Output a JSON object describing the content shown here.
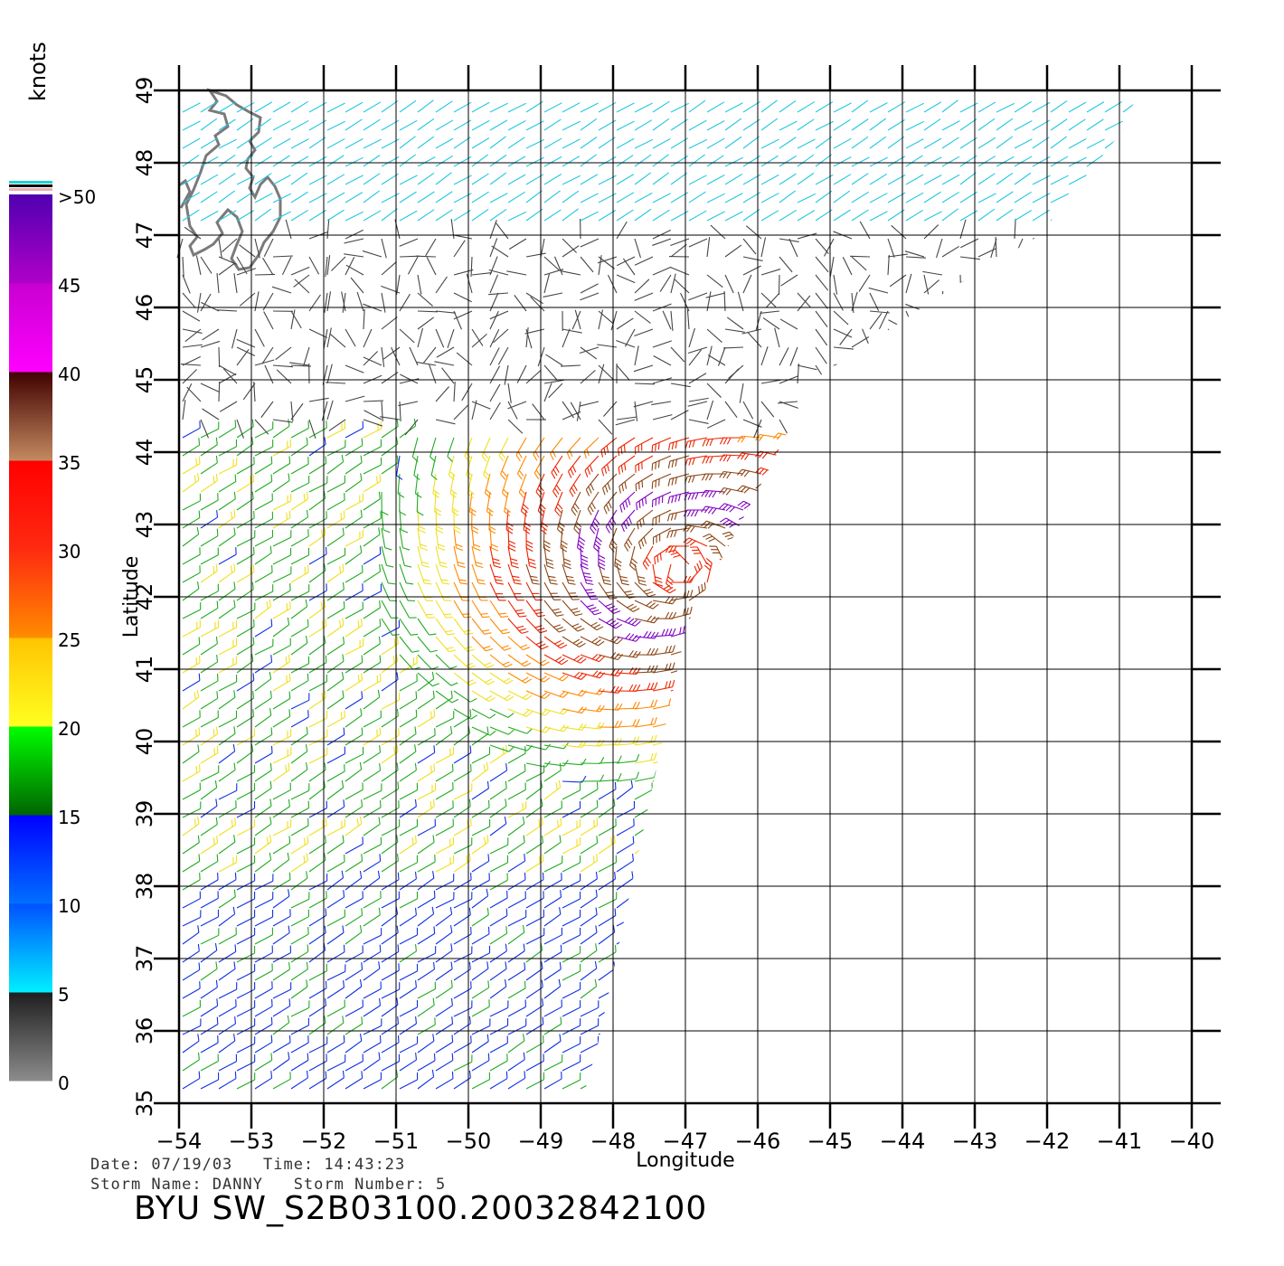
{
  "colorbar": {
    "unit": "knots",
    "labels": [
      ">50",
      "45",
      "40",
      "35",
      "30",
      "25",
      "20",
      "15",
      "10",
      "5",
      "0"
    ],
    "segments": [
      {
        "from": 0,
        "to": 5,
        "colors": [
          "#8c8c8c",
          "#1e1e1e"
        ]
      },
      {
        "from": 5,
        "to": 10,
        "colors": [
          "#00f0ff",
          "#0050ff"
        ]
      },
      {
        "from": 10,
        "to": 15,
        "colors": [
          "#0070ff",
          "#0000ff"
        ]
      },
      {
        "from": 15,
        "to": 20,
        "colors": [
          "#006400",
          "#00ff00"
        ]
      },
      {
        "from": 20,
        "to": 25,
        "colors": [
          "#ffff20",
          "#ffc400"
        ]
      },
      {
        "from": 25,
        "to": 30,
        "colors": [
          "#ff8c00",
          "#ff2a10"
        ]
      },
      {
        "from": 30,
        "to": 35,
        "colors": [
          "#ff2a10",
          "#ff0000"
        ]
      },
      {
        "from": 35,
        "to": 40,
        "colors": [
          "#c48a60",
          "#400000"
        ]
      },
      {
        "from": 40,
        "to": 45,
        "colors": [
          "#ff00ff",
          "#c800d0"
        ]
      },
      {
        "from": 45,
        "to": 50,
        "colors": [
          "#b000c8",
          "#5000b0"
        ]
      }
    ],
    "top_stripes": [
      "#20d0d0",
      "#000000",
      "#e8b0b0"
    ]
  },
  "map": {
    "lon_ticks": [
      -54,
      -53,
      -52,
      -51,
      -50,
      -49,
      -48,
      -47,
      -46,
      -45,
      -44,
      -43,
      -42,
      -41,
      -40
    ],
    "lat_ticks": [
      35,
      36,
      37,
      38,
      39,
      40,
      41,
      42,
      43,
      44,
      45,
      46,
      47,
      48,
      49
    ],
    "lon_range": [
      -54,
      -40
    ],
    "lat_range": [
      35,
      49
    ],
    "xlabel": "Longitude",
    "ylabel": "Latitude",
    "storm_center": {
      "lon": -47.1,
      "lat": 42.4
    },
    "coast_color": "#7a7a7a"
  },
  "info": {
    "date_line": "Date: 07/19/03   Time: 14:43:23",
    "storm_line": "Storm Name: DANNY   Storm Number: 5",
    "file_id": "BYU SW_S2B03100.20032842100"
  }
}
